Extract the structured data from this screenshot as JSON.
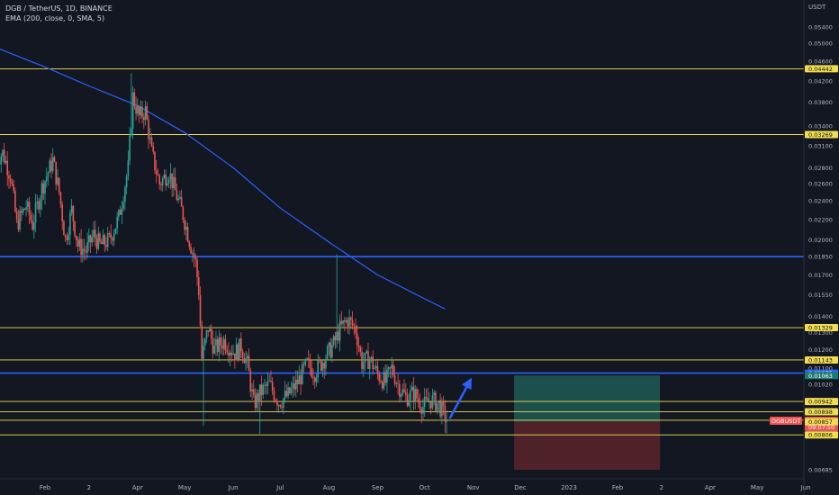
{
  "header": {
    "symbol_line": "DGB / TetherUS, 1D, BINANCE",
    "indicator_line": "EMA (200, close, 0, SMA, 5)"
  },
  "chart_data": {
    "type": "candlestick",
    "currency_label": "USDT",
    "symbol_tag": "DGBUSDT",
    "countdown": "09:07:50",
    "colors": {
      "background": "#131722",
      "up": "#26a69a",
      "down": "#ef5350",
      "yellow_level": "#f0dc4e",
      "blue_level": "#2962ff",
      "ema": "#2962ff",
      "arrow": "#2962ff",
      "profit_zone": "#1f5a55",
      "loss_zone": "#5a2329"
    },
    "y_scale": "log",
    "y_ticks": [
      "0.05400",
      "0.05000",
      "0.04600",
      "0.04200",
      "0.03800",
      "0.03400",
      "0.03100",
      "0.02800",
      "0.02600",
      "0.02400",
      "0.02200",
      "0.02000",
      "0.01850",
      "0.01700",
      "0.01550",
      "0.01400",
      "0.01300",
      "0.01200",
      "0.01100",
      "0.01020",
      "0.00940",
      "0.00870",
      "0.00806",
      "0.00685"
    ],
    "x_ticks": [
      "Feb",
      "2",
      "Apr",
      "May",
      "Jun",
      "Jul",
      "Aug",
      "Sep",
      "Oct",
      "Nov",
      "Dec",
      "2023",
      "Feb",
      "2",
      "Apr",
      "May",
      "Jun"
    ],
    "yellow_levels": [
      "0.04442",
      "0.03269",
      "0.01329",
      "0.01143",
      "0.00942",
      "0.00898",
      "0.00863",
      "0.00806"
    ],
    "blue_levels": [
      "0.01850",
      "0.01075"
    ],
    "right_labels": [
      {
        "text": "0.04442",
        "price": 0.04442,
        "kind": "yellow"
      },
      {
        "text": "0.03269",
        "price": 0.03269,
        "kind": "yellow"
      },
      {
        "text": "0.01329",
        "price": 0.01329,
        "kind": "yellow"
      },
      {
        "text": "0.01143",
        "price": 0.01143,
        "kind": "yellow"
      },
      {
        "text": "0.01075",
        "price": 0.01075,
        "kind": "blue"
      },
      {
        "text": "0.01063",
        "price": 0.01063,
        "kind": "teal"
      },
      {
        "text": "0.00942",
        "price": 0.00942,
        "kind": "yellow"
      },
      {
        "text": "0.00898",
        "price": 0.00898,
        "kind": "yellow"
      },
      {
        "text": "0.00863",
        "price": 0.00863,
        "kind": "red"
      },
      {
        "text": "0.00857",
        "price": 0.00857,
        "kind": "yellow"
      },
      {
        "text": "0.00806",
        "price": 0.00806,
        "kind": "yellow"
      }
    ],
    "position": {
      "entry": 0.00857,
      "target": 0.01063,
      "stop": 0.00685,
      "start_date": "2022-11-27",
      "end_date": "2023-02-28"
    },
    "arrow": {
      "from_date": "2022-10-17",
      "from_price": 0.00863,
      "to_date": "2022-10-31",
      "to_price": 0.0107
    },
    "price_path": [
      [
        "2022-01-01",
        0.0292
      ],
      [
        "2022-01-05",
        0.03
      ],
      [
        "2022-01-10",
        0.027
      ],
      [
        "2022-01-14",
        0.0215
      ],
      [
        "2022-01-20",
        0.0235
      ],
      [
        "2022-01-24",
        0.0215
      ],
      [
        "2022-01-30",
        0.0255
      ],
      [
        "2022-02-06",
        0.029
      ],
      [
        "2022-02-10",
        0.025
      ],
      [
        "2022-02-14",
        0.02
      ],
      [
        "2022-02-18",
        0.023
      ],
      [
        "2022-02-22",
        0.0195
      ],
      [
        "2022-02-27",
        0.019
      ],
      [
        "2022-03-04",
        0.0205
      ],
      [
        "2022-03-08",
        0.0195
      ],
      [
        "2022-03-14",
        0.02
      ],
      [
        "2022-03-20",
        0.0222
      ],
      [
        "2022-03-26",
        0.028
      ],
      [
        "2022-03-29",
        0.039
      ],
      [
        "2022-04-02",
        0.0355
      ],
      [
        "2022-04-06",
        0.0365
      ],
      [
        "2022-04-10",
        0.03
      ],
      [
        "2022-04-15",
        0.026
      ],
      [
        "2022-04-21",
        0.0275
      ],
      [
        "2022-04-26",
        0.0245
      ],
      [
        "2022-04-30",
        0.0225
      ],
      [
        "2022-05-04",
        0.02
      ],
      [
        "2022-05-08",
        0.018
      ],
      [
        "2022-05-10",
        0.0158
      ],
      [
        "2022-05-12",
        0.0115
      ],
      [
        "2022-05-16",
        0.0133
      ],
      [
        "2022-05-20",
        0.012
      ],
      [
        "2022-05-26",
        0.0125
      ],
      [
        "2022-06-02",
        0.0118
      ],
      [
        "2022-06-06",
        0.0122
      ],
      [
        "2022-06-10",
        0.0112
      ],
      [
        "2022-06-14",
        0.0093
      ],
      [
        "2022-06-18",
        0.0098
      ],
      [
        "2022-06-24",
        0.0102
      ],
      [
        "2022-06-30",
        0.0094
      ],
      [
        "2022-07-06",
        0.0097
      ],
      [
        "2022-07-12",
        0.0103
      ],
      [
        "2022-07-18",
        0.0112
      ],
      [
        "2022-07-23",
        0.0108
      ],
      [
        "2022-07-29",
        0.0115
      ],
      [
        "2022-08-04",
        0.0123
      ],
      [
        "2022-08-08",
        0.0132
      ],
      [
        "2022-08-13",
        0.0138
      ],
      [
        "2022-08-18",
        0.0132
      ],
      [
        "2022-08-22",
        0.0113
      ],
      [
        "2022-08-27",
        0.0115
      ],
      [
        "2022-09-01",
        0.0107
      ],
      [
        "2022-09-06",
        0.0103
      ],
      [
        "2022-09-10",
        0.011
      ],
      [
        "2022-09-14",
        0.0102
      ],
      [
        "2022-09-19",
        0.0096
      ],
      [
        "2022-09-24",
        0.0098
      ],
      [
        "2022-09-30",
        0.0092
      ],
      [
        "2022-10-05",
        0.0095
      ],
      [
        "2022-10-10",
        0.0093
      ],
      [
        "2022-10-15",
        0.00863
      ]
    ],
    "spikes": [
      {
        "date": "2022-03-28",
        "high": 0.0435
      },
      {
        "date": "2022-08-06",
        "high": 0.0187
      },
      {
        "date": "2022-05-13",
        "low": 0.0084
      },
      {
        "date": "2022-06-18",
        "low": 0.0081
      },
      {
        "date": "2022-10-15",
        "low": 0.0081
      }
    ],
    "ema_path": [
      [
        "2022-01-01",
        0.049
      ],
      [
        "2022-02-01",
        0.0448
      ],
      [
        "2022-03-01",
        0.041
      ],
      [
        "2022-04-01",
        0.0374
      ],
      [
        "2022-05-01",
        0.033
      ],
      [
        "2022-06-01",
        0.028
      ],
      [
        "2022-07-01",
        0.0232
      ],
      [
        "2022-08-01",
        0.0198
      ],
      [
        "2022-09-01",
        0.017
      ],
      [
        "2022-10-01",
        0.0152
      ],
      [
        "2022-10-14",
        0.0145
      ]
    ]
  }
}
